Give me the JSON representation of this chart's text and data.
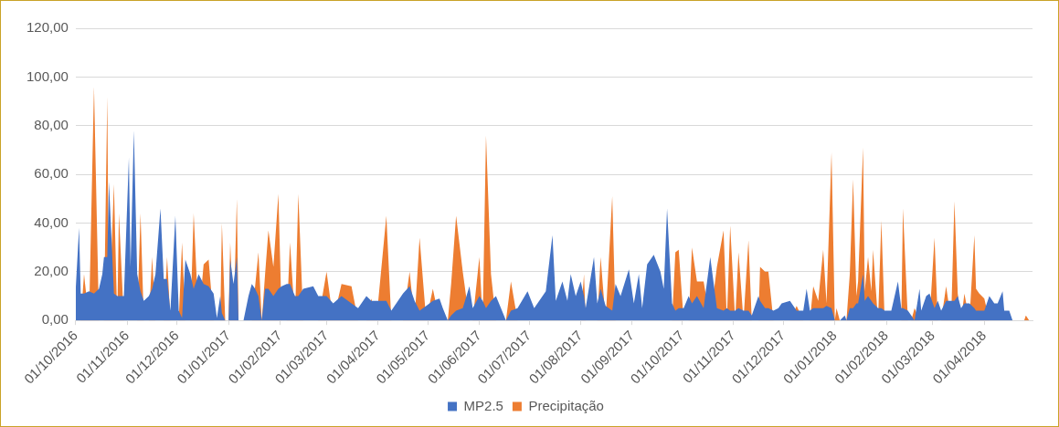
{
  "chart_data": {
    "type": "area",
    "x": [
      "2016-10-01",
      "2016-10-03",
      "2016-10-04",
      "2016-10-06",
      "2016-10-09",
      "2016-10-12",
      "2016-10-15",
      "2016-10-17",
      "2016-10-18",
      "2016-10-20",
      "2016-10-21",
      "2016-10-24",
      "2016-10-26",
      "2016-10-27",
      "2016-10-30",
      "2016-11-02",
      "2016-11-03",
      "2016-11-05",
      "2016-11-07",
      "2016-11-09",
      "2016-11-11",
      "2016-11-14",
      "2016-11-16",
      "2016-11-18",
      "2016-11-21",
      "2016-11-23",
      "2016-11-25",
      "2016-11-27",
      "2016-11-30",
      "2016-12-02",
      "2016-12-04",
      "2016-12-06",
      "2016-12-09",
      "2016-12-11",
      "2016-12-14",
      "2016-12-17",
      "2016-12-20",
      "2016-12-23",
      "2016-12-25",
      "2016-12-27",
      "2016-12-28",
      "2016-12-30",
      "2017-01-01",
      "2017-01-02",
      "2017-01-04",
      "2017-01-06",
      "2017-01-07",
      "2017-01-10",
      "2017-01-13",
      "2017-01-15",
      "2017-01-17",
      "2017-01-19",
      "2017-01-21",
      "2017-01-23",
      "2017-01-25",
      "2017-01-28",
      "2017-01-31",
      "2017-02-02",
      "2017-02-05",
      "2017-02-07",
      "2017-02-10",
      "2017-02-12",
      "2017-02-15",
      "2017-02-21",
      "2017-02-24",
      "2017-03-01",
      "2017-03-05",
      "2017-03-10",
      "2017-03-16",
      "2017-03-20",
      "2017-03-25",
      "2017-03-28",
      "2017-03-31",
      "2017-04-06",
      "2017-04-09",
      "2017-04-13",
      "2017-04-16",
      "2017-04-20",
      "2017-04-23",
      "2017-04-26",
      "2017-04-30",
      "2017-05-04",
      "2017-05-08",
      "2017-05-10",
      "2017-05-13",
      "2017-05-15",
      "2017-05-18",
      "2017-05-22",
      "2017-05-26",
      "2017-05-28",
      "2017-06-01",
      "2017-06-03",
      "2017-06-05",
      "2017-06-08",
      "2017-06-11",
      "2017-06-14",
      "2017-06-17",
      "2017-06-20",
      "2017-06-24",
      "2017-06-30",
      "2017-07-04",
      "2017-07-11",
      "2017-07-15",
      "2017-07-17",
      "2017-07-21",
      "2017-07-24",
      "2017-07-26",
      "2017-07-29",
      "2017-08-01",
      "2017-08-03",
      "2017-08-04",
      "2017-08-09",
      "2017-08-11",
      "2017-08-13",
      "2017-08-16",
      "2017-08-20",
      "2017-08-22",
      "2017-08-25",
      "2017-08-30",
      "2017-09-02",
      "2017-09-05",
      "2017-09-07",
      "2017-09-10",
      "2017-09-14",
      "2017-09-18",
      "2017-09-20",
      "2017-09-22",
      "2017-09-25",
      "2017-09-27",
      "2017-09-29",
      "2017-10-02",
      "2017-10-05",
      "2017-10-07",
      "2017-10-10",
      "2017-10-14",
      "2017-10-18",
      "2017-10-22",
      "2017-10-26",
      "2017-10-28",
      "2017-10-30",
      "2017-11-02",
      "2017-11-04",
      "2017-11-07",
      "2017-11-10",
      "2017-11-12",
      "2017-11-16",
      "2017-11-17",
      "2017-11-20",
      "2017-11-22",
      "2017-11-25",
      "2017-11-28",
      "2017-11-30",
      "2017-12-05",
      "2017-12-09",
      "2017-12-13",
      "2017-12-15",
      "2017-12-17",
      "2017-12-19",
      "2017-12-22",
      "2017-12-25",
      "2017-12-27",
      "2017-12-30",
      "2018-01-01",
      "2018-01-02",
      "2018-01-04",
      "2018-01-07",
      "2018-01-08",
      "2018-01-10",
      "2018-01-12",
      "2018-01-14",
      "2018-01-15",
      "2018-01-18",
      "2018-01-19",
      "2018-01-21",
      "2018-01-23",
      "2018-01-24",
      "2018-01-27",
      "2018-01-29",
      "2018-01-31",
      "2018-02-04",
      "2018-02-08",
      "2018-02-10",
      "2018-02-11",
      "2018-02-14",
      "2018-02-16",
      "2018-02-18",
      "2018-02-21",
      "2018-02-22",
      "2018-02-25",
      "2018-02-27",
      "2018-03-02",
      "2018-03-04",
      "2018-03-06",
      "2018-03-09",
      "2018-03-12",
      "2018-03-14",
      "2018-03-16",
      "2018-03-18",
      "2018-03-20",
      "2018-03-23",
      "2018-03-26",
      "2018-03-27",
      "2018-03-29",
      "2018-04-01",
      "2018-04-04",
      "2018-04-07",
      "2018-04-09",
      "2018-04-12",
      "2018-04-13",
      "2018-04-16",
      "2018-04-18",
      "2018-04-25",
      "2018-04-26",
      "2018-04-28"
    ],
    "series": [
      {
        "name": "MP2.5",
        "color": "#4472c4",
        "values": [
          13,
          38,
          11,
          11,
          12,
          11,
          13,
          19,
          26,
          26,
          57,
          11,
          10,
          10,
          10,
          67,
          22,
          78,
          19,
          12,
          8,
          10,
          13,
          19,
          46,
          17,
          17,
          4,
          43,
          4,
          1,
          25,
          19,
          13,
          19,
          15,
          14,
          11,
          1,
          10,
          3,
          0,
          0,
          25,
          15,
          26,
          0,
          0,
          10,
          15,
          13,
          10,
          0,
          13,
          13,
          10,
          13,
          14,
          15,
          15,
          10,
          10,
          13,
          14,
          10,
          10,
          7,
          10,
          7,
          5,
          10,
          8,
          8,
          8,
          4,
          8,
          11,
          14,
          8,
          4,
          6,
          8,
          9,
          5,
          0,
          2,
          4,
          5,
          14,
          5,
          10,
          8,
          5,
          8,
          10,
          5,
          0,
          4,
          5,
          12,
          5,
          12,
          35,
          8,
          16,
          8,
          19,
          10,
          16,
          10,
          5,
          26,
          7,
          13,
          6,
          4,
          15,
          10,
          21,
          7,
          19,
          5,
          23,
          27,
          20,
          13,
          46,
          7,
          4,
          5,
          5,
          10,
          7,
          10,
          5,
          26,
          5,
          4,
          5,
          4,
          4,
          5,
          4,
          4,
          2,
          10,
          8,
          5,
          5,
          4,
          5,
          7,
          8,
          4,
          4,
          13,
          4,
          5,
          5,
          5,
          6,
          5,
          0,
          0,
          0,
          2,
          0,
          5,
          5,
          7,
          7,
          19,
          8,
          10,
          8,
          7,
          5,
          5,
          4,
          4,
          16,
          5,
          5,
          4,
          2,
          0,
          13,
          4,
          10,
          11,
          5,
          8,
          4,
          8,
          8,
          8,
          10,
          5,
          7,
          7,
          5,
          4,
          4,
          4,
          10,
          7,
          7,
          12,
          4,
          4,
          0,
          0,
          0,
          0
        ]
      },
      {
        "name": "Precipitação",
        "color": "#ed7d31",
        "values": [
          0,
          0,
          0,
          19,
          0,
          96,
          0,
          0,
          0,
          92,
          0,
          56,
          0,
          44,
          0,
          0,
          0,
          0,
          0,
          44,
          0,
          0,
          26,
          0,
          0,
          0,
          26,
          0,
          0,
          0,
          32,
          0,
          0,
          44,
          0,
          23,
          25,
          0,
          0,
          0,
          40,
          0,
          0,
          32,
          0,
          50,
          0,
          0,
          0,
          0,
          14,
          28,
          0,
          19,
          37,
          22,
          52,
          0,
          0,
          32,
          0,
          52,
          0,
          0,
          0,
          20,
          0,
          15,
          14,
          0,
          0,
          9,
          0,
          43,
          0,
          0,
          0,
          20,
          0,
          34,
          0,
          13,
          0,
          0,
          0,
          15,
          43,
          20,
          0,
          0,
          26,
          0,
          76,
          19,
          0,
          0,
          0,
          16,
          0,
          0,
          0,
          0,
          0,
          0,
          0,
          0,
          0,
          0,
          0,
          19,
          0,
          0,
          0,
          26,
          0,
          51,
          0,
          0,
          0,
          0,
          0,
          0,
          0,
          0,
          0,
          0,
          0,
          0,
          28,
          29,
          0,
          0,
          30,
          16,
          16,
          0,
          22,
          37,
          0,
          39,
          0,
          28,
          0,
          33,
          0,
          0,
          22,
          20,
          20,
          0,
          0,
          0,
          0,
          6,
          0,
          0,
          0,
          14,
          8,
          29,
          7,
          69,
          0,
          5,
          0,
          0,
          0,
          19,
          58,
          10,
          16,
          71,
          12,
          26,
          12,
          29,
          0,
          41,
          0,
          0,
          0,
          0,
          46,
          0,
          0,
          5,
          0,
          0,
          0,
          0,
          34,
          0,
          0,
          14,
          0,
          49,
          11,
          0,
          11,
          0,
          35,
          13,
          11,
          9,
          0,
          0,
          0,
          0,
          0,
          0,
          0,
          0,
          2,
          0
        ]
      }
    ],
    "xlim": [
      "2016-10-01",
      "2018-04-30"
    ],
    "xticks": [
      {
        "value": "2016-10-01",
        "label": "01/10/2016"
      },
      {
        "value": "2016-11-01",
        "label": "01/11/2016"
      },
      {
        "value": "2016-12-01",
        "label": "01/12/2016"
      },
      {
        "value": "2017-01-01",
        "label": "01/01/2017"
      },
      {
        "value": "2017-02-01",
        "label": "01/02/2017"
      },
      {
        "value": "2017-03-01",
        "label": "01/03/2017"
      },
      {
        "value": "2017-04-01",
        "label": "01/04/2017"
      },
      {
        "value": "2017-05-01",
        "label": "01/05/2017"
      },
      {
        "value": "2017-06-01",
        "label": "01/06/2017"
      },
      {
        "value": "2017-07-01",
        "label": "01/07/2017"
      },
      {
        "value": "2017-08-01",
        "label": "01/08/2017"
      },
      {
        "value": "2017-09-01",
        "label": "01/09/2017"
      },
      {
        "value": "2017-10-01",
        "label": "01/10/2017"
      },
      {
        "value": "2017-11-01",
        "label": "01/11/2017"
      },
      {
        "value": "2017-12-01",
        "label": "01/12/2017"
      },
      {
        "value": "2018-01-01",
        "label": "01/01/2018"
      },
      {
        "value": "2018-02-01",
        "label": "01/02/2018"
      },
      {
        "value": "2018-03-01",
        "label": "01/03/2018"
      },
      {
        "value": "2018-04-01",
        "label": "01/04/2018"
      }
    ],
    "ylim": [
      0,
      120
    ],
    "yticks": [
      {
        "value": 0,
        "label": "0,00"
      },
      {
        "value": 20,
        "label": "20,00"
      },
      {
        "value": 40,
        "label": "40,00"
      },
      {
        "value": 60,
        "label": "60,00"
      },
      {
        "value": 80,
        "label": "80,00"
      },
      {
        "value": 100,
        "label": "100,00"
      },
      {
        "value": 120,
        "label": "120,00"
      }
    ],
    "grid": "y",
    "legend": "bottom"
  }
}
